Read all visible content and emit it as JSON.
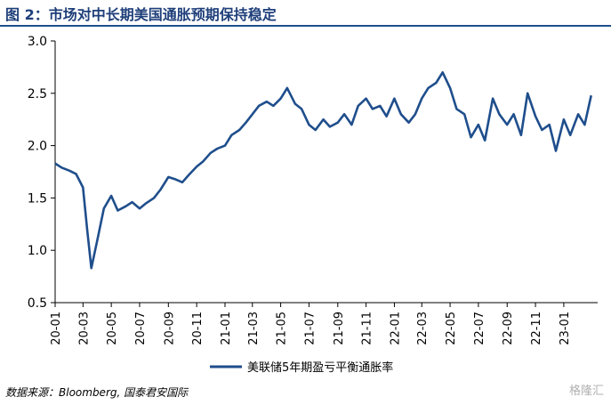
{
  "header": {
    "title": "图 2：市场对中长期美国通胀预期保持稳定"
  },
  "footer": {
    "source": "数据来源：Bloomberg, 国泰君安国际",
    "watermark": "格隆汇"
  },
  "colors": {
    "series": "#1f4e8c",
    "title": "#1f3f7a"
  },
  "chart_data": {
    "type": "line",
    "title": "",
    "xlabel": "",
    "ylabel": "",
    "ylim": [
      0.5,
      3.0
    ],
    "yticks": [
      "3.0",
      "2.5",
      "2.0",
      "1.5",
      "1.0",
      "0.5"
    ],
    "xticks": [
      "20-01",
      "20-03",
      "20-05",
      "20-07",
      "20-09",
      "20-11",
      "21-01",
      "21-03",
      "21-05",
      "21-07",
      "21-09",
      "21-11",
      "22-01",
      "22-03",
      "22-05",
      "22-07",
      "22-09",
      "22-11",
      "23-01"
    ],
    "grid": false,
    "legend": "bottom-center",
    "series": [
      {
        "name": "美联储5年期盈亏平衡通胀率",
        "points": [
          [
            "2020-01",
            1.83
          ],
          [
            "2020-01-15",
            1.79
          ],
          [
            "2020-02",
            1.76
          ],
          [
            "2020-02-15",
            1.73
          ],
          [
            "2020-03",
            1.6
          ],
          [
            "2020-03-10",
            1.2
          ],
          [
            "2020-03-19",
            0.83
          ],
          [
            "2020-04",
            1.1
          ],
          [
            "2020-04-15",
            1.4
          ],
          [
            "2020-05",
            1.52
          ],
          [
            "2020-05-15",
            1.38
          ],
          [
            "2020-06",
            1.42
          ],
          [
            "2020-06-15",
            1.46
          ],
          [
            "2020-07",
            1.4
          ],
          [
            "2020-07-15",
            1.45
          ],
          [
            "2020-08",
            1.5
          ],
          [
            "2020-08-15",
            1.58
          ],
          [
            "2020-09",
            1.7
          ],
          [
            "2020-09-15",
            1.68
          ],
          [
            "2020-10",
            1.65
          ],
          [
            "2020-10-15",
            1.72
          ],
          [
            "2020-11",
            1.8
          ],
          [
            "2020-11-15",
            1.85
          ],
          [
            "2020-12",
            1.93
          ],
          [
            "2020-12-15",
            1.97
          ],
          [
            "2021-01",
            2.0
          ],
          [
            "2021-01-15",
            2.1
          ],
          [
            "2021-02",
            2.15
          ],
          [
            "2021-02-15",
            2.22
          ],
          [
            "2021-03",
            2.3
          ],
          [
            "2021-03-15",
            2.38
          ],
          [
            "2021-04",
            2.42
          ],
          [
            "2021-04-15",
            2.38
          ],
          [
            "2021-05",
            2.45
          ],
          [
            "2021-05-15",
            2.55
          ],
          [
            "2021-06",
            2.4
          ],
          [
            "2021-06-15",
            2.35
          ],
          [
            "2021-07",
            2.2
          ],
          [
            "2021-07-15",
            2.15
          ],
          [
            "2021-08",
            2.25
          ],
          [
            "2021-08-15",
            2.18
          ],
          [
            "2021-09",
            2.22
          ],
          [
            "2021-09-15",
            2.3
          ],
          [
            "2021-10",
            2.2
          ],
          [
            "2021-10-15",
            2.38
          ],
          [
            "2021-11",
            2.45
          ],
          [
            "2021-11-15",
            2.35
          ],
          [
            "2021-12",
            2.38
          ],
          [
            "2021-12-15",
            2.28
          ],
          [
            "2022-01",
            2.45
          ],
          [
            "2022-01-15",
            2.3
          ],
          [
            "2022-02",
            2.22
          ],
          [
            "2022-02-15",
            2.3
          ],
          [
            "2022-03",
            2.45
          ],
          [
            "2022-03-15",
            2.55
          ],
          [
            "2022-04",
            2.6
          ],
          [
            "2022-04-15",
            2.7
          ],
          [
            "2022-05",
            2.55
          ],
          [
            "2022-05-15",
            2.35
          ],
          [
            "2022-06",
            2.3
          ],
          [
            "2022-06-15",
            2.08
          ],
          [
            "2022-07",
            2.2
          ],
          [
            "2022-07-15",
            2.05
          ],
          [
            "2022-08",
            2.45
          ],
          [
            "2022-08-15",
            2.3
          ],
          [
            "2022-09",
            2.2
          ],
          [
            "2022-09-15",
            2.3
          ],
          [
            "2022-10",
            2.1
          ],
          [
            "2022-10-15",
            2.5
          ],
          [
            "2022-11",
            2.28
          ],
          [
            "2022-11-15",
            2.15
          ],
          [
            "2022-12",
            2.2
          ],
          [
            "2022-12-15",
            1.95
          ],
          [
            "2023-01",
            2.25
          ],
          [
            "2023-01-15",
            2.1
          ],
          [
            "2023-02",
            2.3
          ],
          [
            "2023-02-15",
            2.2
          ],
          [
            "2023-03",
            2.48
          ]
        ]
      }
    ]
  }
}
